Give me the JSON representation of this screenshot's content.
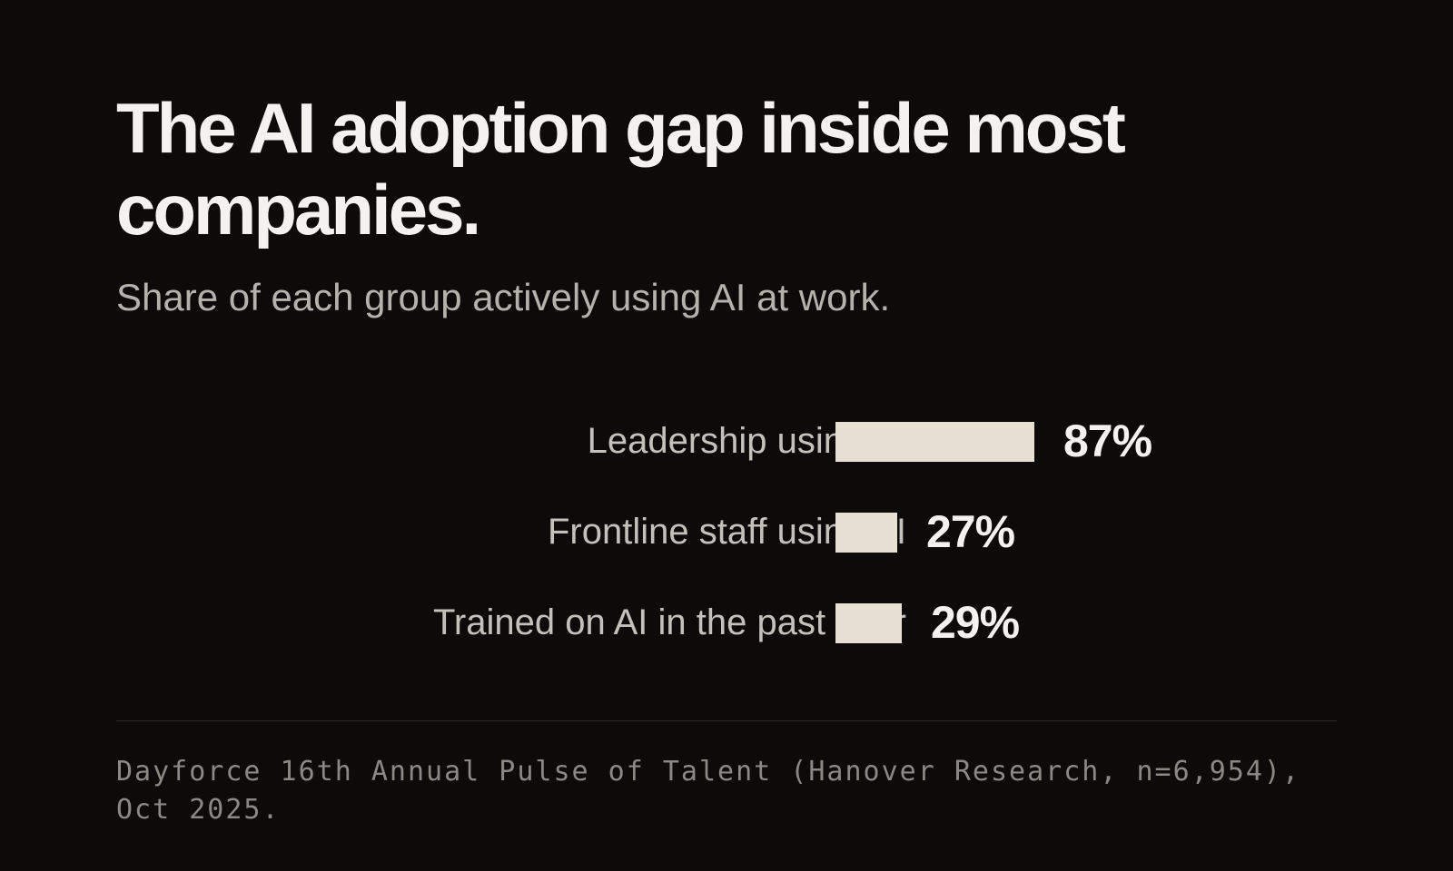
{
  "header": {
    "title": "The AI adoption gap inside most companies.",
    "subtitle": "Share of each group actively using AI at work."
  },
  "chart_data": {
    "type": "bar",
    "orientation": "horizontal",
    "categories": [
      "Leadership using AI",
      "Frontline staff using AI",
      "Trained on AI in the past year"
    ],
    "values": [
      87,
      27,
      29
    ],
    "value_labels": [
      "87%",
      "27%",
      "29%"
    ],
    "unit": "%",
    "xlim": [
      0,
      100
    ],
    "grid": false,
    "bar_color": "#e8e1d3",
    "title": "The AI adoption gap inside most companies.",
    "subtitle": "Share of each group actively using AI at work."
  },
  "footer": {
    "source": "Dayforce 16th Annual Pulse of Talent (Hanover Research, n=6,954), Oct 2025."
  },
  "colors": {
    "background": "#0c0b0a",
    "bar": "#e8e1d3",
    "text_primary": "#f4f2ee",
    "text_secondary": "#b5b2ac",
    "text_muted": "#8c8984"
  }
}
